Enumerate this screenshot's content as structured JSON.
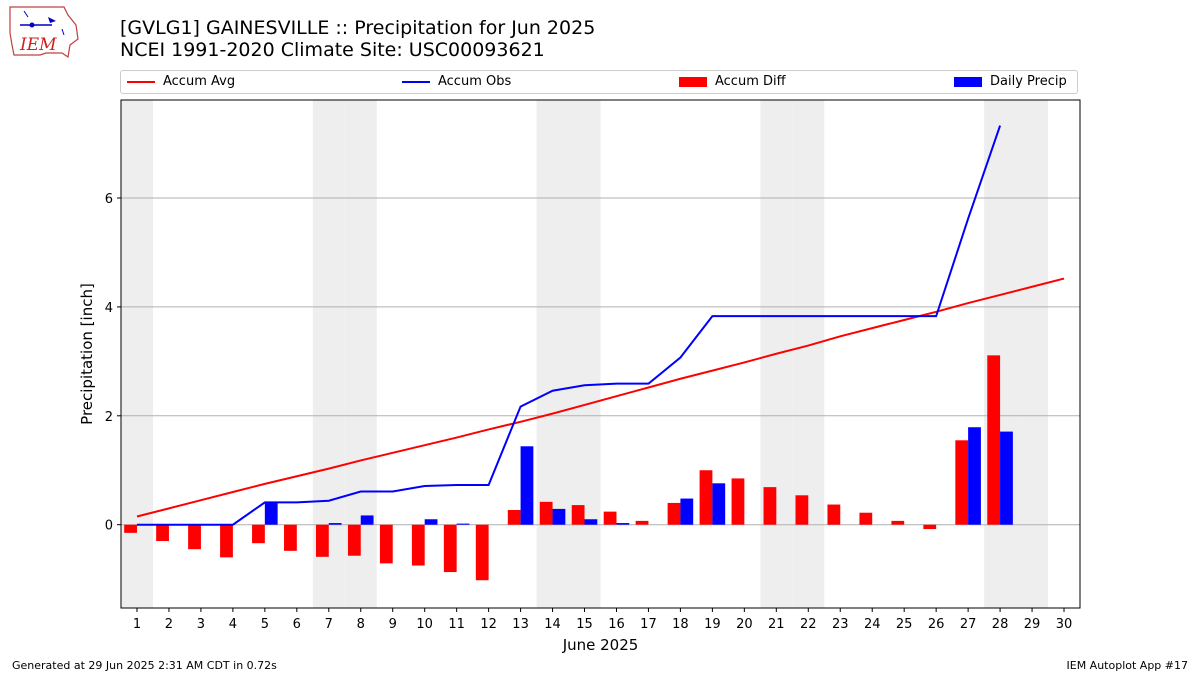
{
  "header": {
    "title_line1": "[GVLG1] GAINESVILLE :: Precipitation for Jun 2025",
    "title_line2": "NCEI 1991-2020 Climate Site: USC00093621",
    "logo_text": "IEM"
  },
  "footer": {
    "generated": "Generated at 29 Jun 2025 2:31 AM CDT in 0.72s",
    "app": "IEM Autoplot App #17"
  },
  "colors": {
    "accum_avg": "#ff0000",
    "accum_obs": "#0000ff",
    "accum_diff": "#ff0000",
    "daily_precip": "#0000ff",
    "weekend_shade": "#eeeeee",
    "grid": "#b0b0b0"
  },
  "chart_data": {
    "type": "bar",
    "xlabel": "June 2025",
    "ylabel": "Precipitation [inch]",
    "xlim": [
      0.5,
      30.5
    ],
    "ylim": [
      -1.53,
      7.8
    ],
    "yticks": [
      0,
      2,
      4,
      6
    ],
    "grid": true,
    "legend_placement": "top",
    "legend": [
      "Accum Avg",
      "Accum Obs",
      "Accum Diff",
      "Daily Precip"
    ],
    "weekend_days": [
      1,
      7,
      8,
      14,
      15,
      21,
      22,
      28,
      29
    ],
    "days": [
      1,
      2,
      3,
      4,
      5,
      6,
      7,
      8,
      9,
      10,
      11,
      12,
      13,
      14,
      15,
      16,
      17,
      18,
      19,
      20,
      21,
      22,
      23,
      24,
      25,
      26,
      27,
      28,
      29,
      30
    ],
    "series": [
      {
        "name": "Accum Avg",
        "type": "line",
        "values": [
          0.15,
          0.3,
          0.45,
          0.6,
          0.75,
          0.89,
          1.03,
          1.18,
          1.32,
          1.46,
          1.6,
          1.75,
          1.89,
          2.04,
          2.2,
          2.36,
          2.52,
          2.68,
          2.83,
          2.98,
          3.14,
          3.29,
          3.46,
          3.61,
          3.76,
          3.91,
          4.07,
          4.22,
          4.37,
          4.52
        ]
      },
      {
        "name": "Accum Obs",
        "type": "line",
        "values": [
          0.0,
          0.0,
          0.0,
          0.0,
          0.41,
          0.41,
          0.44,
          0.61,
          0.61,
          0.71,
          0.73,
          0.73,
          2.17,
          2.46,
          2.56,
          2.59,
          2.59,
          3.07,
          3.83,
          3.83,
          3.83,
          3.83,
          3.83,
          3.83,
          3.83,
          3.83,
          5.62,
          7.33
        ]
      },
      {
        "name": "Accum Diff",
        "type": "bar",
        "values": [
          -0.15,
          -0.3,
          -0.45,
          -0.6,
          -0.34,
          -0.48,
          -0.59,
          -0.57,
          -0.71,
          -0.75,
          -0.87,
          -1.02,
          0.27,
          0.42,
          0.36,
          0.24,
          0.07,
          0.4,
          1.0,
          0.85,
          0.69,
          0.54,
          0.37,
          0.22,
          0.07,
          -0.08,
          1.55,
          3.11
        ]
      },
      {
        "name": "Daily Precip",
        "type": "bar",
        "values": [
          0,
          0,
          0,
          0,
          0.41,
          0,
          0.03,
          0.17,
          0,
          0.1,
          0.02,
          0,
          1.44,
          0.29,
          0.1,
          0.03,
          0,
          0.48,
          0.76,
          0,
          0,
          0,
          0,
          0,
          0,
          0,
          1.79,
          1.71
        ]
      }
    ]
  }
}
